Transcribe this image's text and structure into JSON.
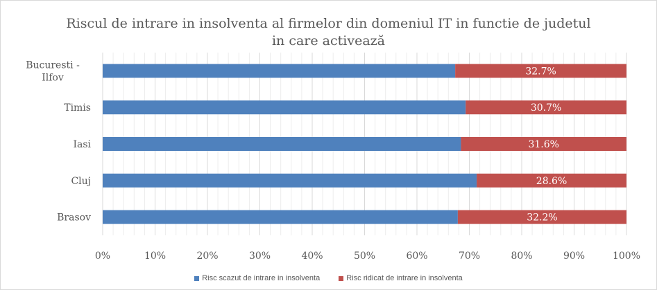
{
  "chart_data": {
    "type": "bar",
    "orientation": "horizontal",
    "stacked": "percent",
    "title_line1": "Riscul de intrare in insolventa al firmelor din domeniul IT in functie de judetul",
    "title_line2": "in care activează",
    "categories": [
      "Bucuresti - Ilfov",
      "Timis",
      "Iasi",
      "Cluj",
      "Brasov"
    ],
    "category_lines": [
      [
        "Bucuresti -",
        "Ilfov"
      ],
      [
        "Timis"
      ],
      [
        "Iasi"
      ],
      [
        "Cluj"
      ],
      [
        "Brasov"
      ]
    ],
    "series": [
      {
        "name": "Risc scazut de intrare in insolventa",
        "values": [
          67.3,
          69.3,
          68.4,
          71.4,
          67.8
        ],
        "color": "#4f81bd",
        "show_labels": false
      },
      {
        "name": "Risc ridicat de intrare in insolventa",
        "values": [
          32.7,
          30.7,
          31.6,
          28.6,
          32.2
        ],
        "color": "#c0504d",
        "show_labels": true
      },
      "__labels__"
    ],
    "data_labels": [
      "32.7%",
      "30.7%",
      "31.6%",
      "28.6%",
      "32.2%"
    ],
    "xlim": [
      0,
      100
    ],
    "x_ticks": [
      "0%",
      "10%",
      "20%",
      "30%",
      "40%",
      "50%",
      "60%",
      "70%",
      "80%",
      "90%",
      "100%"
    ],
    "grid": true,
    "legend_position": "bottom"
  }
}
